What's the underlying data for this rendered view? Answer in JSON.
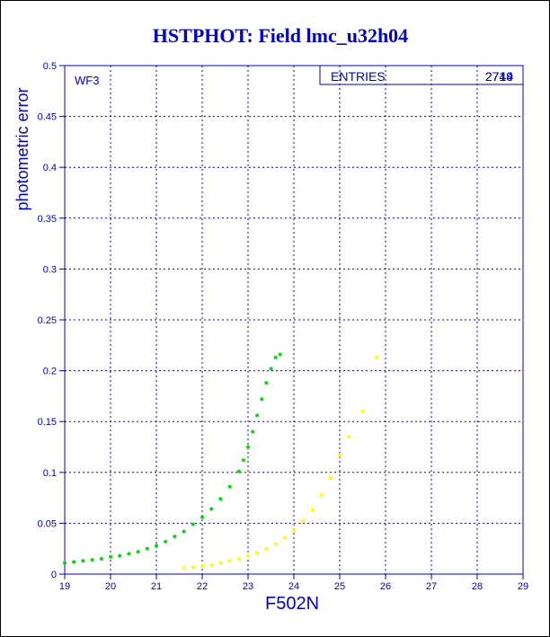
{
  "chart_data": {
    "type": "scatter",
    "title": "HSTPHOT: Field lmc_u32h04",
    "xlabel": "F502N",
    "ylabel": "photometric error",
    "panel_label": "WF3",
    "stats_box": {
      "label": "ENTRIES",
      "value": "2744",
      "overprint_value": "2719"
    },
    "xlim": [
      19,
      29
    ],
    "ylim": [
      0,
      0.5
    ],
    "x_ticks": [
      "19",
      "20",
      "21",
      "22",
      "23",
      "24",
      "25",
      "26",
      "27",
      "28",
      "29"
    ],
    "y_ticks": [
      "0",
      "0.05",
      "0.1",
      "0.15",
      "0.2",
      "0.25",
      "0.3",
      "0.35",
      "0.4",
      "0.45",
      "0.5"
    ],
    "grid": true,
    "colors": {
      "title": "#0000cc",
      "axes": "#0000cc",
      "grid": "#0000cc",
      "series_a": "#00dd00",
      "series_b": "#ffff00"
    },
    "series": [
      {
        "color": "#00dd00",
        "points": [
          [
            19.0,
            0.011
          ],
          [
            19.2,
            0.012
          ],
          [
            19.4,
            0.013
          ],
          [
            19.6,
            0.014
          ],
          [
            19.8,
            0.015
          ],
          [
            20.0,
            0.017
          ],
          [
            20.2,
            0.018
          ],
          [
            20.4,
            0.02
          ],
          [
            20.6,
            0.022
          ],
          [
            20.8,
            0.025
          ],
          [
            21.0,
            0.028
          ],
          [
            21.2,
            0.032
          ],
          [
            21.4,
            0.037
          ],
          [
            21.6,
            0.042
          ],
          [
            21.8,
            0.049
          ],
          [
            22.0,
            0.056
          ],
          [
            22.2,
            0.064
          ],
          [
            22.4,
            0.074
          ],
          [
            22.6,
            0.086
          ],
          [
            22.8,
            0.101
          ],
          [
            22.9,
            0.112
          ],
          [
            23.0,
            0.125
          ],
          [
            23.1,
            0.14
          ],
          [
            23.2,
            0.156
          ],
          [
            23.3,
            0.172
          ],
          [
            23.4,
            0.188
          ],
          [
            23.5,
            0.202
          ],
          [
            23.6,
            0.213
          ],
          [
            23.7,
            0.216
          ]
        ]
      },
      {
        "color": "#ffff00",
        "points": [
          [
            21.6,
            0.006
          ],
          [
            21.8,
            0.007
          ],
          [
            22.0,
            0.008
          ],
          [
            22.2,
            0.009
          ],
          [
            22.4,
            0.011
          ],
          [
            22.6,
            0.013
          ],
          [
            22.8,
            0.015
          ],
          [
            23.0,
            0.018
          ],
          [
            23.2,
            0.021
          ],
          [
            23.4,
            0.025
          ],
          [
            23.6,
            0.03
          ],
          [
            23.8,
            0.036
          ],
          [
            24.0,
            0.043
          ],
          [
            24.2,
            0.052
          ],
          [
            24.4,
            0.063
          ],
          [
            24.6,
            0.078
          ],
          [
            24.8,
            0.095
          ],
          [
            25.0,
            0.117
          ],
          [
            25.2,
            0.135
          ],
          [
            25.5,
            0.16
          ],
          [
            25.8,
            0.213
          ]
        ]
      }
    ]
  }
}
